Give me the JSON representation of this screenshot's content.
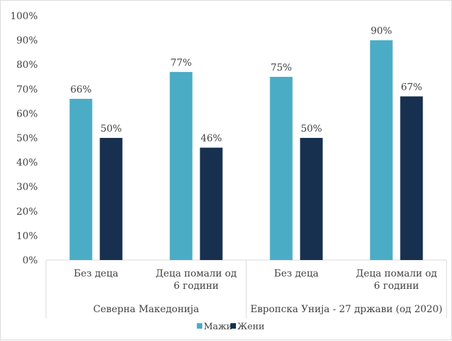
{
  "chart_data": {
    "type": "bar",
    "ylim": [
      0,
      100
    ],
    "yticks": [
      "0%",
      "10%",
      "20%",
      "30%",
      "40%",
      "50%",
      "60%",
      "70%",
      "80%",
      "90%",
      "100%"
    ],
    "groups": [
      {
        "label": "Северна Македонија",
        "categories": [
          {
            "lines": [
              "Без деца"
            ]
          },
          {
            "lines": [
              "Деца помали од",
              "6 години"
            ]
          }
        ]
      },
      {
        "label": "Европска Унија - 27 држави (од 2020)",
        "categories": [
          {
            "lines": [
              "Без деца"
            ]
          },
          {
            "lines": [
              "Деца помали од",
              "6 години"
            ]
          }
        ]
      }
    ],
    "series": [
      {
        "name": "Мажи",
        "color": "#4bacc6",
        "values": [
          66,
          77,
          75,
          90
        ],
        "labels": [
          "66%",
          "77%",
          "75%",
          "90%"
        ]
      },
      {
        "name": "Жени",
        "color": "#17304f",
        "values": [
          50,
          46,
          50,
          67
        ],
        "labels": [
          "50%",
          "46%",
          "50%",
          "67%"
        ]
      }
    ],
    "legend_position": "bottom"
  }
}
